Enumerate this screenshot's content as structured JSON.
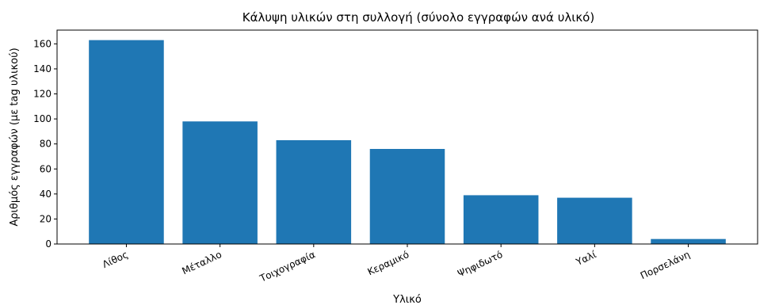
{
  "chart_data": {
    "type": "bar",
    "title": "Κάλυψη υλικών στη συλλογή (σύνολο εγγραφών ανά υλικό)",
    "xlabel": "Υλικό",
    "ylabel": "Αριθμός εγγραφών (με tag υλικού)",
    "categories": [
      "Λίθος",
      "Μέταλλο",
      "Τοιχογραφία",
      "Κεραμικό",
      "Ψηφιδωτό",
      "Υαλί",
      "Πορσελάνη"
    ],
    "values": [
      163,
      98,
      83,
      76,
      39,
      37,
      4
    ],
    "ylim": [
      0,
      171
    ],
    "yticks": [
      0,
      20,
      40,
      60,
      80,
      100,
      120,
      140,
      160
    ],
    "grid": false,
    "bar_color": "#1f77b4"
  }
}
